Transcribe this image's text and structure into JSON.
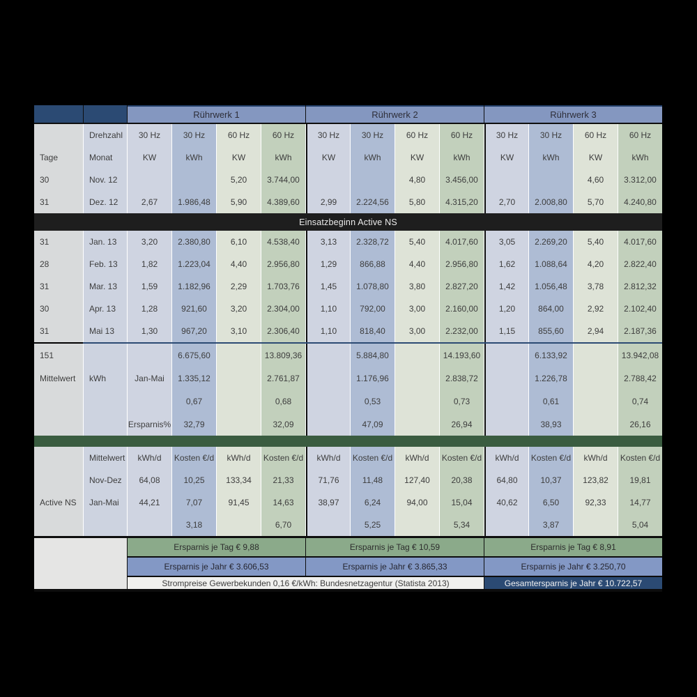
{
  "colors": {
    "background": "#000000",
    "navy": "#2b4a73",
    "group_band_blue": "#8497c0",
    "col_tage": "#d8dadb",
    "col_monat_kw30": "#cdd3e0",
    "col_kwh30": "#aebcd4",
    "col_kw60": "#dee3d7",
    "col_kwh60": "#c2d0bc",
    "divider_black": "#1e1e1e",
    "divider_green": "#3a5c40",
    "savings_day_green": "#8baa8a",
    "savings_year_blue": "#8398c5",
    "note_bg": "#f0f0ee"
  },
  "table": {
    "corner": {
      "drehzahl": "Drehzahl",
      "tage": "Tage",
      "monat": "Monat"
    },
    "groups": [
      "Rührwerk 1",
      "Rührwerk 2",
      "Rührwerk 3"
    ],
    "freqs": [
      "30 Hz",
      "30 Hz",
      "60 Hz",
      "60 Hz",
      "30 Hz",
      "30 Hz",
      "60 Hz",
      "60 Hz",
      "30 Hz",
      "30 Hz",
      "60 Hz",
      "60 Hz"
    ],
    "units": [
      "KW",
      "kWh",
      "KW",
      "kWh",
      "KW",
      "kWh",
      "KW",
      "kWh",
      "KW",
      "kWh",
      "KW",
      "kWh"
    ],
    "months_before": [
      {
        "tage": "30",
        "monat": "Nov. 12",
        "v": [
          "",
          "",
          "5,20",
          "3.744,00",
          "",
          "",
          "4,80",
          "3.456,00",
          "",
          "",
          "4,60",
          "3.312,00"
        ]
      },
      {
        "tage": "31",
        "monat": "Dez. 12",
        "v": [
          "2,67",
          "1.986,48",
          "5,90",
          "4.389,60",
          "2,99",
          "2.224,56",
          "5,80",
          "4.315,20",
          "2,70",
          "2.008,80",
          "5,70",
          "4.240,80"
        ]
      }
    ],
    "divider": "Einsatzbeginn Active NS",
    "months_after": [
      {
        "tage": "31",
        "monat": "Jan. 13",
        "v": [
          "3,20",
          "2.380,80",
          "6,10",
          "4.538,40",
          "3,13",
          "2.328,72",
          "5,40",
          "4.017,60",
          "3,05",
          "2.269,20",
          "5,40",
          "4.017,60"
        ]
      },
      {
        "tage": "28",
        "monat": "Feb. 13",
        "v": [
          "1,82",
          "1.223,04",
          "4,40",
          "2.956,80",
          "1,29",
          "866,88",
          "4,40",
          "2.956,80",
          "1,62",
          "1.088,64",
          "4,20",
          "2.822,40"
        ]
      },
      {
        "tage": "31",
        "monat": "Mar. 13",
        "v": [
          "1,59",
          "1.182,96",
          "2,29",
          "1.703,76",
          "1,45",
          "1.078,80",
          "3,80",
          "2.827,20",
          "1,42",
          "1.056,48",
          "3,78",
          "2.812,32"
        ]
      },
      {
        "tage": "30",
        "monat": "Apr. 13",
        "v": [
          "1,28",
          "921,60",
          "3,20",
          "2.304,00",
          "1,10",
          "792,00",
          "3,00",
          "2.160,00",
          "1,20",
          "864,00",
          "2,92",
          "2.102,40"
        ]
      },
      {
        "tage": "31",
        "monat": "Mai 13",
        "v": [
          "1,30",
          "967,20",
          "3,10",
          "2.306,40",
          "1,10",
          "818,40",
          "3,00",
          "2.232,00",
          "1,15",
          "855,60",
          "2,94",
          "2.187,36"
        ]
      }
    ],
    "summary": [
      {
        "tage": "151",
        "monat": "",
        "v": [
          "",
          "6.675,60",
          "",
          "13.809,36",
          "",
          "5.884,80",
          "",
          "14.193,60",
          "",
          "6.133,92",
          "",
          "13.942,08"
        ]
      },
      {
        "tage": "Mittelwert",
        "monat": "kWh",
        "v": [
          "Jan-Mai",
          "1.335,12",
          "",
          "2.761,87",
          "",
          "1.176,96",
          "",
          "2.838,72",
          "",
          "1.226,78",
          "",
          "2.788,42"
        ]
      },
      {
        "tage": "",
        "monat": "",
        "v": [
          "",
          "0,67",
          "",
          "0,68",
          "",
          "0,53",
          "",
          "0,73",
          "",
          "0,61",
          "",
          "0,74"
        ]
      },
      {
        "tage": "",
        "monat": "",
        "v": [
          "Ersparnis%",
          "32,79",
          "",
          "32,09",
          "",
          "47,09",
          "",
          "26,94",
          "",
          "38,93",
          "",
          "26,16"
        ]
      }
    ],
    "daily": [
      {
        "tage": "",
        "monat": "Mittelwert",
        "v": [
          "kWh/d",
          "Kosten €/d",
          "kWh/d",
          "Kosten €/d",
          "kWh/d",
          "Kosten €/d",
          "kWh/d",
          "Kosten €/d",
          "kWh/d",
          "Kosten €/d",
          "kWh/d",
          "Kosten €/d"
        ]
      },
      {
        "tage": "",
        "monat": "Nov-Dez",
        "v": [
          "64,08",
          "10,25",
          "133,34",
          "21,33",
          "71,76",
          "11,48",
          "127,40",
          "20,38",
          "64,80",
          "10,37",
          "123,82",
          "19,81"
        ]
      },
      {
        "tage": "Active NS",
        "monat": "Jan-Mai",
        "v": [
          "44,21",
          "7,07",
          "91,45",
          "14,63",
          "38,97",
          "6,24",
          "94,00",
          "15,04",
          "40,62",
          "6,50",
          "92,33",
          "14,77"
        ]
      },
      {
        "tage": "",
        "monat": "",
        "v": [
          "",
          "3,18",
          "",
          "6,70",
          "",
          "5,25",
          "",
          "5,34",
          "",
          "3,87",
          "",
          "5,04"
        ]
      }
    ],
    "footer": {
      "per_day": [
        "Ersparnis je Tag € 9,88",
        "Ersparnis je Tag € 10,59",
        "Ersparnis je Tag € 8,91"
      ],
      "per_year": [
        "Ersparnis je Jahr € 3.606,53",
        "Ersparnis je Jahr € 3.865,33",
        "Ersparnis je Jahr € 3.250,70"
      ],
      "note": "Strompreise Gewerbekunden 0,16 €/kWh: Bundesnetzagentur (Statista 2013)",
      "total": "Gesamtersparnis je Jahr € 10.722,57"
    }
  }
}
